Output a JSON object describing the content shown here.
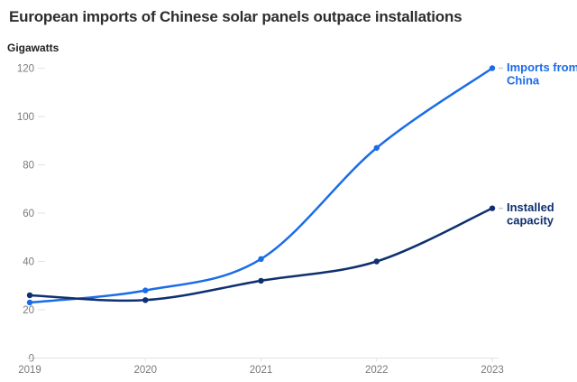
{
  "header": {
    "title": "European imports of Chinese solar panels outpace installations",
    "units_label": "Gigawatts"
  },
  "chart_data": {
    "type": "line",
    "x": [
      2019,
      2020,
      2021,
      2022,
      2023
    ],
    "series": [
      {
        "name": "Imports from China",
        "label_lines": [
          "Imports from",
          "China"
        ],
        "color": "#1a6ce8",
        "values": [
          23,
          28,
          41,
          87,
          120
        ]
      },
      {
        "name": "Installed capacity",
        "label_lines": [
          "Installed",
          "capacity"
        ],
        "color": "#0f3070",
        "values": [
          26,
          24,
          32,
          40,
          62
        ]
      }
    ],
    "title": "European imports of Chinese solar panels outpace installations",
    "xlabel": "",
    "ylabel": "Gigawatts",
    "ylim": [
      0,
      120
    ],
    "yticks": [
      0,
      20,
      40,
      60,
      80,
      100,
      120
    ],
    "xticks": [
      "2019",
      "2020",
      "2021",
      "2022",
      "2023"
    ],
    "grid": "baseline-only",
    "legend_position": "end-of-line"
  },
  "colors": {
    "title_text": "#2d2d2d",
    "axis_text": "#7a7a7a",
    "axis_line": "#e2e2e2",
    "leader_dash": "#cccccc",
    "background": "#ffffff",
    "imports_blue": "#1a6ce8",
    "installed_navy": "#0f3070"
  }
}
